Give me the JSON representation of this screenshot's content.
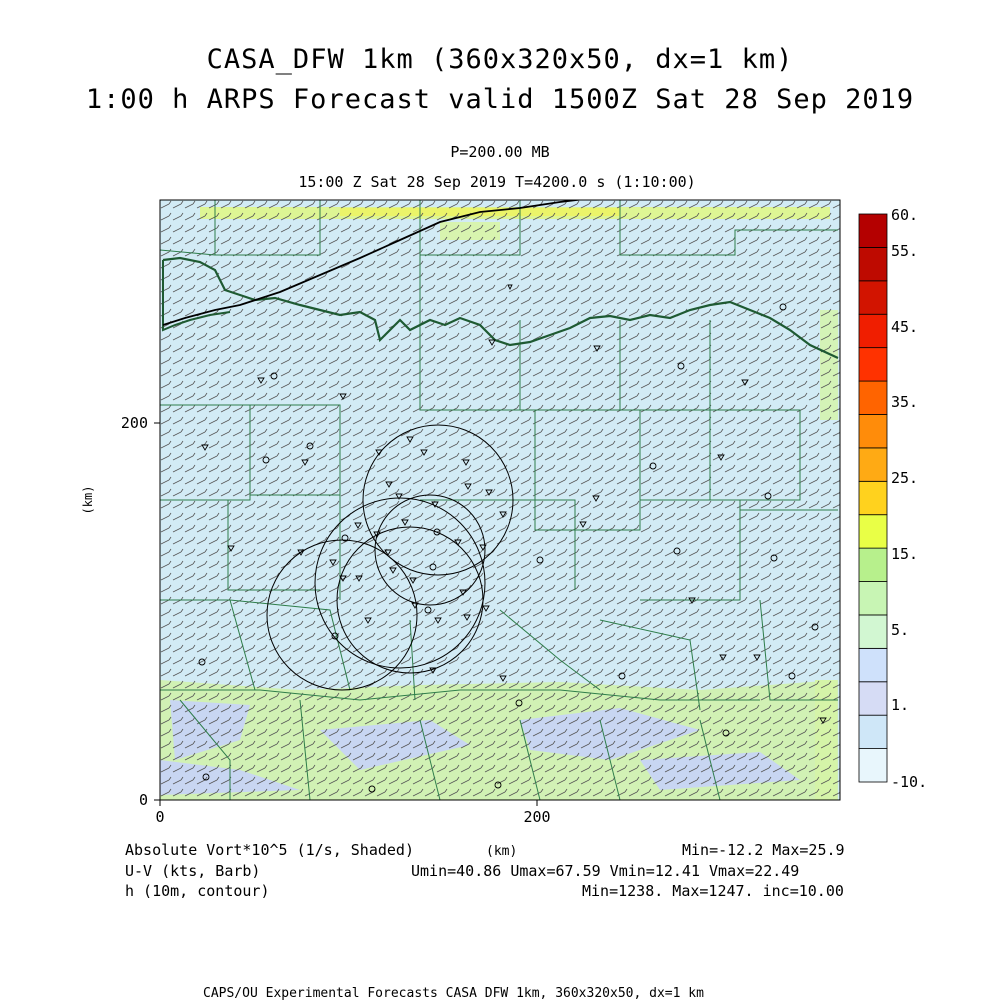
{
  "header": {
    "title_line1": "CASA_DFW 1km (360x320x50, dx=1 km)",
    "title_line2": "1:00 h ARPS Forecast valid 1500Z Sat 28 Sep 2019",
    "pressure_level": "P=200.00 MB",
    "valid_time": "15:00 Z Sat 28 Sep 2019   T=4200.0 s (1:10:00)"
  },
  "axes": {
    "x_unit": "(km)",
    "y_unit": "(km)",
    "x_ticks": [
      "0",
      "200"
    ],
    "y_ticks": [
      "0",
      "200"
    ]
  },
  "colorbar": {
    "labels": [
      "60.",
      "55.",
      "45.",
      "35.",
      "25.",
      "15.",
      "5.",
      "1.",
      "-10."
    ],
    "colors": [
      "#e8f6fc",
      "#cfe7f8",
      "#d6dcf5",
      "#cfe1fb",
      "#d2f7d2",
      "#c8f5b4",
      "#b7f08c",
      "#e9ff46",
      "#ffd21e",
      "#ffaa14",
      "#ff8c0a",
      "#ff6400",
      "#ff3200",
      "#f01e00",
      "#d21400",
      "#be0a00",
      "#b40000"
    ]
  },
  "legend": {
    "field1": "Absolute Vort*10^5 (1/s, Shaded)",
    "field1_range": "Min=-12.2 Max=25.9",
    "field2": "U-V (kts, Barb)",
    "field2_range": "Umin=40.86 Umax=67.59 Vmin=12.41 Vmax=22.49",
    "field3": "h (10m, contour)",
    "field3_range": "Min=1238. Max=1247. inc=10.00",
    "unit_center": "(km)"
  },
  "footer": "CAPS/OU Experimental Forecasts  CASA DFW 1km, 360x320x50, dx=1 km",
  "style": {
    "background_field": "#d2ebf5",
    "county_lines": "#2e7d4a",
    "county_lines_thick": "#1e5a32",
    "barb_color": "#555555"
  }
}
